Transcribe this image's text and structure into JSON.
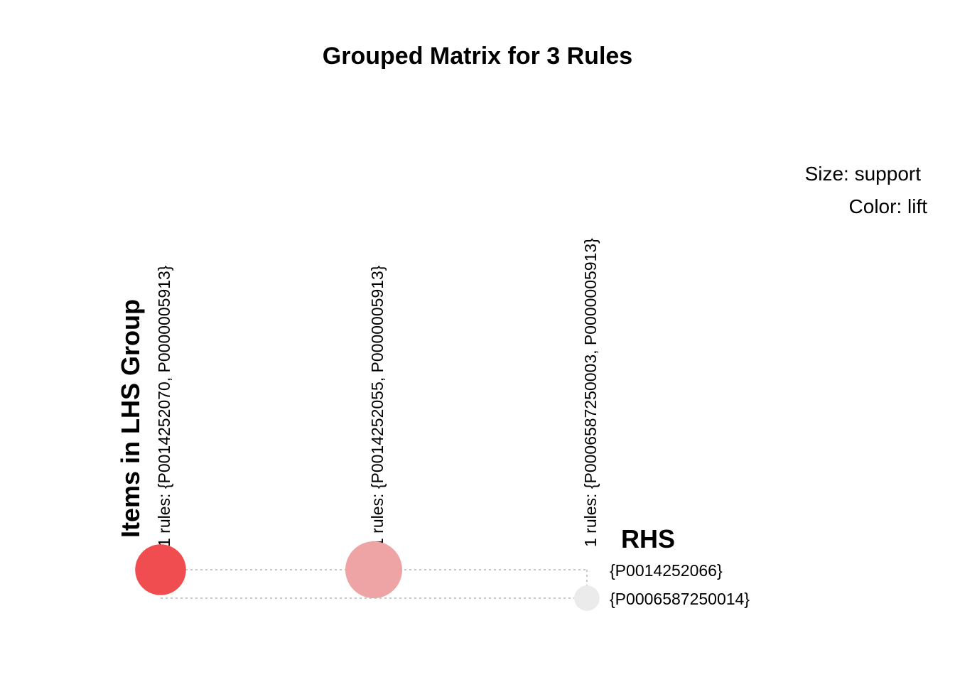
{
  "chart_data": {
    "type": "grouped-matrix",
    "title": "Grouped Matrix for 3 Rules",
    "legend": {
      "size_label": "Size: support",
      "color_label": "Color: lift"
    },
    "lhs_axis_title": "Items in LHS Group",
    "rhs_axis_title": "RHS",
    "lhs_groups": [
      "1 rules: {P0014252070, P0000005913}",
      "1 rules: {P0014252055, P0000005913}",
      "1 rules: {P0006587250003, P0000005913}"
    ],
    "rhs_items": [
      "{P0014252066}",
      "{P0006587250014}"
    ],
    "rules": [
      {
        "lhs_index": 0,
        "rhs_index": 0,
        "support": 0.8,
        "lift": 1.0,
        "color": "#ef4d4f"
      },
      {
        "lhs_index": 1,
        "rhs_index": 0,
        "support": 1.0,
        "lift": 0.6,
        "color": "#eea3a4"
      },
      {
        "lhs_index": 2,
        "rhs_index": 1,
        "support": 0.2,
        "lift": 0.0,
        "color": "#ebebeb"
      }
    ]
  }
}
